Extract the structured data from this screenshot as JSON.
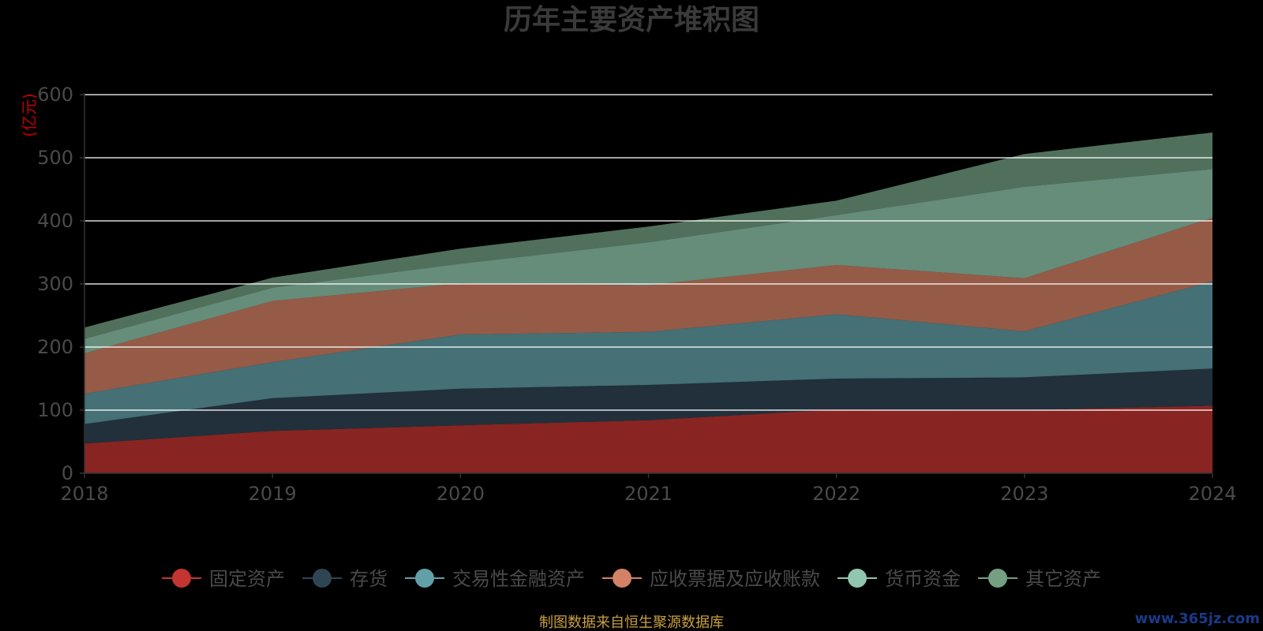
{
  "chart_data": {
    "type": "area",
    "stacked": true,
    "title": "历年主要资产堆积图",
    "unit_label": "(亿元)",
    "x": [
      "2018",
      "2019",
      "2020",
      "2021",
      "2022",
      "2023",
      "2024"
    ],
    "ylim": [
      0,
      600
    ],
    "yticks": [
      0,
      100,
      200,
      300,
      400,
      500,
      600
    ],
    "grid": true,
    "legend_position": "bottom",
    "series": [
      {
        "name": "固定资产",
        "color": "#c23531",
        "values": [
          47,
          67,
          76,
          84,
          101,
          100,
          107
        ]
      },
      {
        "name": "存货",
        "color": "#2f4554",
        "values": [
          31,
          52,
          58,
          56,
          49,
          52,
          59
        ]
      },
      {
        "name": "交易性金融资产",
        "color": "#61a0a8",
        "values": [
          48,
          57,
          86,
          84,
          102,
          73,
          138
        ]
      },
      {
        "name": "应收票据及应收账款",
        "color": "#d48265",
        "values": [
          64,
          97,
          81,
          74,
          78,
          84,
          101
        ]
      },
      {
        "name": "货币资金",
        "color": "#91c7ae",
        "values": [
          23,
          21,
          31,
          68,
          79,
          145,
          77
        ]
      },
      {
        "name": "其它资产",
        "color": "#749f83",
        "values": [
          18,
          16,
          24,
          25,
          23,
          52,
          58
        ]
      }
    ]
  },
  "footer": {
    "source": "制图数据来自恒生聚源数据库",
    "watermark": "www.365jz.com"
  }
}
